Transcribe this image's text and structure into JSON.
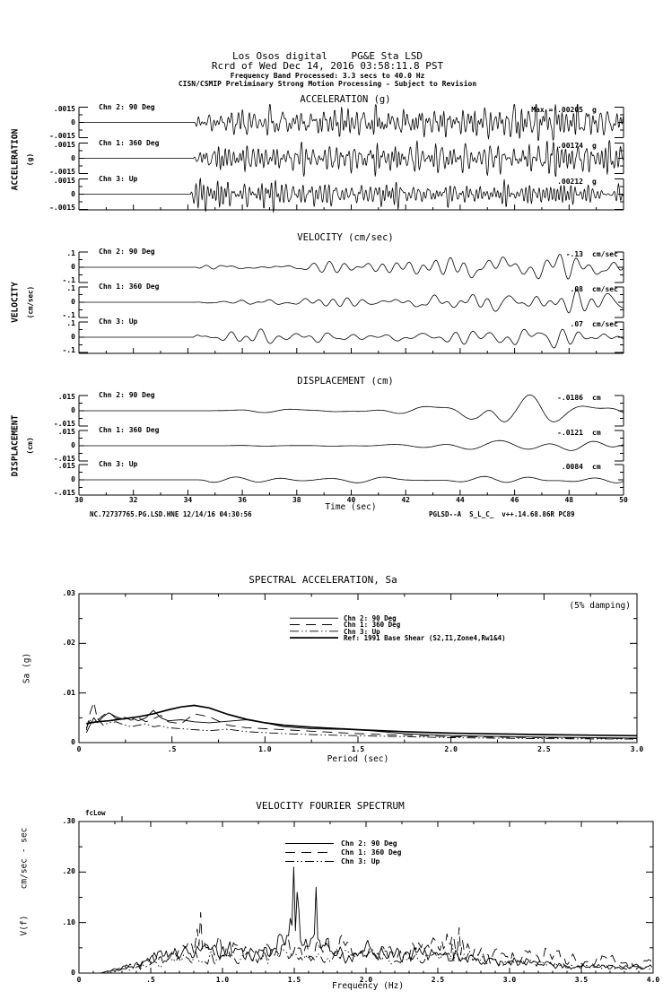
{
  "ink": "#000000",
  "header": {
    "line1": "Los Osos digital    PG&E Sta LSD",
    "line2": "Rcrd of Wed Dec 14, 2016 03:58:11.8 PST",
    "line3": "Frequency Band Processed: 3.3 secs to 40.0 Hz",
    "line4": "CISN/CSMIP Preliminary Strong Motion Processing - Subject to Revision"
  },
  "footer": {
    "left": "NC.72737765.PG.LSD.HNE 12/14/16 04:30:56",
    "right": "PGLSD--A  S_L_C_  v++.14.68.86R PC89"
  },
  "chart_data": [
    {
      "id": "acceleration",
      "type": "line",
      "title": "ACCELERATION (g)",
      "side_label": "ACCELERATION",
      "side_unit": "(g)",
      "x_range": [
        30,
        50
      ],
      "scale_max": 0.0015,
      "y_tick_labels": [
        ".0015",
        "0",
        "-.0015"
      ],
      "series": [
        {
          "name": "Chn 2: 90 Deg",
          "peak_label": "Max = .00205",
          "peak_units": "g",
          "envelope": [
            [
              34.2,
              0
            ],
            [
              34.5,
              0.001
            ],
            [
              36,
              0.0012
            ],
            [
              40,
              0.0013
            ],
            [
              44,
              0.0012
            ],
            [
              46.5,
              0.0016
            ],
            [
              47.2,
              0.00205
            ],
            [
              48,
              0.0013
            ],
            [
              50,
              0.0012
            ]
          ]
        },
        {
          "name": "Chn 1: 360 Deg",
          "peak_label": ".00174",
          "peak_units": "g",
          "envelope": [
            [
              34.2,
              0
            ],
            [
              34.6,
              0.0011
            ],
            [
              37,
              0.0013
            ],
            [
              41,
              0.0013
            ],
            [
              45,
              0.0012
            ],
            [
              47,
              0.0013
            ],
            [
              48.5,
              0.00174
            ],
            [
              50,
              0.0014
            ]
          ]
        },
        {
          "name": "Chn 3: Up",
          "peak_label": ".00212",
          "peak_units": "g",
          "envelope": [
            [
              34.1,
              0
            ],
            [
              34.25,
              0.0018
            ],
            [
              34.6,
              0.00212
            ],
            [
              35.5,
              0.0012
            ],
            [
              38,
              0.0011
            ],
            [
              42,
              0.0009
            ],
            [
              46,
              0.0008
            ],
            [
              50,
              0.0008
            ]
          ]
        }
      ]
    },
    {
      "id": "velocity",
      "type": "line",
      "title": "VELOCITY (cm/sec)",
      "side_label": "VELOCITY",
      "side_unit": "(cm/sec)",
      "x_range": [
        30,
        50
      ],
      "scale_max": 0.1,
      "y_tick_labels": [
        ".1",
        "0",
        "-.1"
      ],
      "series": [
        {
          "name": "Chn 2: 90 Deg",
          "peak_label": "-.13",
          "peak_units": "cm/sec",
          "envelope": [
            [
              34.3,
              0
            ],
            [
              35,
              0.02
            ],
            [
              37,
              0.027
            ],
            [
              39,
              0.027
            ],
            [
              41,
              0.033
            ],
            [
              43,
              0.047
            ],
            [
              44.5,
              0.087
            ],
            [
              45.5,
              0.13
            ],
            [
              46.5,
              0.087
            ],
            [
              47.5,
              0.093
            ],
            [
              48.5,
              0.06
            ],
            [
              50,
              0.053
            ]
          ]
        },
        {
          "name": "Chn 1: 360 Deg",
          "peak_label": ".08",
          "peak_units": "cm/sec",
          "envelope": [
            [
              34.3,
              0
            ],
            [
              35,
              0.017
            ],
            [
              38,
              0.027
            ],
            [
              41,
              0.033
            ],
            [
              43,
              0.04
            ],
            [
              45,
              0.047
            ],
            [
              46,
              0.04
            ],
            [
              47.5,
              0.06
            ],
            [
              49,
              0.08
            ],
            [
              50,
              0.06
            ]
          ]
        },
        {
          "name": "Chn 3: Up",
          "peak_label": ".07",
          "peak_units": "cm/sec",
          "envelope": [
            [
              34.2,
              0
            ],
            [
              34.4,
              0.053
            ],
            [
              35,
              0.04
            ],
            [
              37,
              0.033
            ],
            [
              40,
              0.033
            ],
            [
              43,
              0.033
            ],
            [
              45,
              0.04
            ],
            [
              47,
              0.07
            ],
            [
              48.5,
              0.04
            ],
            [
              50,
              0.033
            ]
          ]
        }
      ]
    },
    {
      "id": "displacement",
      "type": "line",
      "title": "DISPLACEMENT (cm)",
      "side_label": "DISPLACEMENT",
      "side_unit": "(cm)",
      "x_range": [
        30,
        50
      ],
      "scale_max": 0.015,
      "y_tick_labels": [
        ".015",
        "0",
        "-.015"
      ],
      "xlabel": "Time (sec)",
      "x_tick_labels": [
        "30",
        "32",
        "34",
        "36",
        "38",
        "40",
        "42",
        "44",
        "46",
        "48",
        "50"
      ],
      "series": [
        {
          "name": "Chn 2: 90 Deg",
          "peak_label": "-.0186",
          "peak_units": "cm",
          "envelope": [
            [
              34.5,
              0
            ],
            [
              36,
              0.0015
            ],
            [
              38,
              0.002
            ],
            [
              40,
              0.0025
            ],
            [
              42,
              0.004
            ],
            [
              43.5,
              0.006
            ],
            [
              44.5,
              0.01
            ],
            [
              45.3,
              0.0186
            ],
            [
              46,
              0.01
            ],
            [
              47,
              0.012
            ],
            [
              48,
              0.008
            ],
            [
              49,
              0.009
            ],
            [
              50,
              0.006
            ]
          ]
        },
        {
          "name": "Chn 1: 360 Deg",
          "peak_label": "-.0121",
          "peak_units": "cm",
          "envelope": [
            [
              34.5,
              0
            ],
            [
              37,
              0.001
            ],
            [
              40,
              0.002
            ],
            [
              42,
              0.003
            ],
            [
              44,
              0.004
            ],
            [
              46,
              0.005
            ],
            [
              47.5,
              0.006
            ],
            [
              49,
              0.01
            ],
            [
              49.6,
              0.0121
            ],
            [
              50,
              0.011
            ]
          ]
        },
        {
          "name": "Chn 3: Up",
          "peak_label": ".0084",
          "peak_units": "cm",
          "envelope": [
            [
              34.3,
              0
            ],
            [
              34.8,
              0.004
            ],
            [
              36,
              0.003
            ],
            [
              38,
              0.003
            ],
            [
              40,
              0.004
            ],
            [
              42,
              0.004
            ],
            [
              44,
              0.005
            ],
            [
              45.5,
              0.006
            ],
            [
              47,
              0.0084
            ],
            [
              48,
              0.006
            ],
            [
              49,
              0.005
            ],
            [
              50,
              0.005
            ]
          ]
        }
      ]
    },
    {
      "id": "spectral_acceleration",
      "type": "line",
      "title": "SPECTRAL ACCELERATION, Sa",
      "annotation": "(5% damping)",
      "xlabel": "Period (sec)",
      "ylabel": "Sa (g)",
      "xlim": [
        0,
        3.0
      ],
      "ylim": [
        0,
        0.03
      ],
      "x_tick_labels": [
        "0",
        ".5",
        "1.0",
        "1.5",
        "2.0",
        "2.5",
        "3.0"
      ],
      "y_tick_labels": [
        ".03",
        ".02",
        ".01",
        "0"
      ],
      "x": [
        0.04,
        0.06,
        0.08,
        0.1,
        0.13,
        0.16,
        0.2,
        0.24,
        0.28,
        0.32,
        0.36,
        0.4,
        0.44,
        0.48,
        0.55,
        0.62,
        0.7,
        0.8,
        0.9,
        1.0,
        1.1,
        1.25,
        1.5,
        1.75,
        2.0,
        2.5,
        3.0
      ],
      "series": [
        {
          "name": "Chn 2: 90 Deg",
          "dash": "solid",
          "y": [
            0.002,
            0.0035,
            0.005,
            0.004,
            0.0052,
            0.006,
            0.0052,
            0.0047,
            0.005,
            0.0044,
            0.005,
            0.0065,
            0.005,
            0.0044,
            0.0046,
            0.0042,
            0.004,
            0.0043,
            0.0046,
            0.004,
            0.0032,
            0.0028,
            0.0026,
            0.0018,
            0.0014,
            0.0011,
            0.0009
          ]
        },
        {
          "name": "Chn 1: 360 Deg",
          "dash": "dash",
          "y": [
            0.0025,
            0.006,
            0.0082,
            0.0045,
            0.0055,
            0.0062,
            0.0048,
            0.0052,
            0.0045,
            0.005,
            0.0042,
            0.0048,
            0.0055,
            0.0042,
            0.0038,
            0.0058,
            0.0052,
            0.0035,
            0.003,
            0.0028,
            0.0026,
            0.0023,
            0.0018,
            0.0015,
            0.0012,
            0.001,
            0.0008
          ]
        },
        {
          "name": "Chn 3: Up",
          "dash": "dashdot",
          "y": [
            0.003,
            0.0045,
            0.0038,
            0.0048,
            0.0035,
            0.004,
            0.0042,
            0.0036,
            0.0032,
            0.0035,
            0.0038,
            0.0032,
            0.0034,
            0.003,
            0.0028,
            0.0026,
            0.0024,
            0.0027,
            0.0022,
            0.002,
            0.0018,
            0.0016,
            0.0014,
            0.0012,
            0.001,
            0.0008,
            0.0007
          ]
        },
        {
          "name": "Ref: 1991 Base Shear (S2,I1,Zone4,Rw1&4)",
          "dash": "thick",
          "y": [
            0.0038,
            0.004,
            0.0041,
            0.0042,
            0.0043,
            0.0044,
            0.0046,
            0.0048,
            0.005,
            0.0052,
            0.0055,
            0.0058,
            0.0062,
            0.0066,
            0.0072,
            0.0075,
            0.007,
            0.0057,
            0.0047,
            0.004,
            0.0035,
            0.0031,
            0.0026,
            0.0022,
            0.0019,
            0.0016,
            0.0014
          ]
        }
      ]
    },
    {
      "id": "velocity_fourier_spectrum",
      "type": "line",
      "title": "VELOCITY FOURIER SPECTRUM",
      "marker": "fcLow",
      "xlabel": "Frequency (Hz)",
      "ylabel": "V(f)",
      "ylabel_unit": "cm/sec - sec",
      "xlim": [
        0,
        4.0
      ],
      "ylim": [
        0,
        0.3
      ],
      "x_tick_labels": [
        "0",
        ".5",
        "1.0",
        "1.5",
        "2.0",
        "2.5",
        "3.0",
        "3.5",
        "4.0"
      ],
      "y_tick_labels": [
        ".30",
        ".20",
        ".10",
        "0"
      ],
      "series": [
        {
          "name": "Chn 2: 90 Deg",
          "dash": "solid",
          "peaks": [
            [
              1.5,
              0.21
            ],
            [
              1.65,
              0.17
            ]
          ],
          "envelope": [
            [
              0.15,
              0
            ],
            [
              0.25,
              0.01
            ],
            [
              0.4,
              0.03
            ],
            [
              0.6,
              0.05
            ],
            [
              0.8,
              0.075
            ],
            [
              0.9,
              0.06
            ],
            [
              1.05,
              0.075
            ],
            [
              1.2,
              0.05
            ],
            [
              1.35,
              0.06
            ],
            [
              1.5,
              0.21
            ],
            [
              1.6,
              0.09
            ],
            [
              1.65,
              0.17
            ],
            [
              1.75,
              0.07
            ],
            [
              1.9,
              0.06
            ],
            [
              2.0,
              0.08
            ],
            [
              2.2,
              0.05
            ],
            [
              2.4,
              0.06
            ],
            [
              2.6,
              0.05
            ],
            [
              2.8,
              0.04
            ],
            [
              3.0,
              0.035
            ],
            [
              3.3,
              0.025
            ],
            [
              3.6,
              0.02
            ],
            [
              4.0,
              0.018
            ]
          ]
        },
        {
          "name": "Chn 1: 360 Deg",
          "dash": "dash",
          "peaks": [
            [
              0.85,
              0.12
            ],
            [
              2.65,
              0.09
            ]
          ],
          "envelope": [
            [
              0.15,
              0
            ],
            [
              0.3,
              0.015
            ],
            [
              0.5,
              0.04
            ],
            [
              0.7,
              0.06
            ],
            [
              0.85,
              0.12
            ],
            [
              1.0,
              0.07
            ],
            [
              1.2,
              0.06
            ],
            [
              1.4,
              0.08
            ],
            [
              1.6,
              0.07
            ],
            [
              1.8,
              0.09
            ],
            [
              2.0,
              0.07
            ],
            [
              2.2,
              0.06
            ],
            [
              2.5,
              0.08
            ],
            [
              2.65,
              0.09
            ],
            [
              2.8,
              0.055
            ],
            [
              3.0,
              0.05
            ],
            [
              3.2,
              0.06
            ],
            [
              3.5,
              0.04
            ],
            [
              3.8,
              0.035
            ],
            [
              4.0,
              0.03
            ]
          ]
        },
        {
          "name": "Chn 3: Up",
          "dash": "dashdot",
          "peaks": [
            [
              2.6,
              0.06
            ]
          ],
          "envelope": [
            [
              0.2,
              0
            ],
            [
              0.4,
              0.02
            ],
            [
              0.6,
              0.03
            ],
            [
              0.8,
              0.05
            ],
            [
              1.0,
              0.04
            ],
            [
              1.2,
              0.05
            ],
            [
              1.4,
              0.055
            ],
            [
              1.6,
              0.05
            ],
            [
              1.8,
              0.05
            ],
            [
              2.0,
              0.055
            ],
            [
              2.2,
              0.04
            ],
            [
              2.5,
              0.06
            ],
            [
              2.7,
              0.05
            ],
            [
              3.0,
              0.03
            ],
            [
              3.3,
              0.025
            ],
            [
              3.6,
              0.02
            ],
            [
              4.0,
              0.015
            ]
          ]
        }
      ]
    }
  ]
}
